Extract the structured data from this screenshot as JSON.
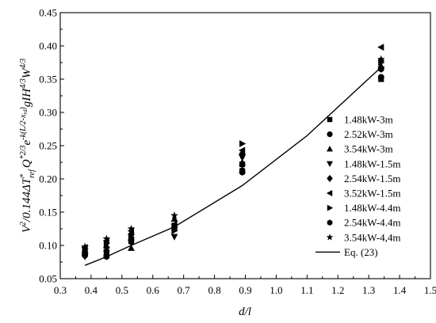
{
  "chart_data": {
    "type": "scatter",
    "xlabel": "d/l",
    "ylabel_parts": {
      "a": "V",
      "a_sup": "2",
      "b": "/0.144ΔT",
      "b_sup": "*",
      "b_sub": "ref",
      "c": "Q",
      "c_sup": "*2/3",
      "d": "e",
      "d_sup": "-k(L/2-x",
      "d_sup_sub": "rd",
      "d_sup_end": ")",
      "e": "gIH",
      "e_sup": "4/3",
      "f": "W",
      "f_sup": "4/3"
    },
    "xlim": [
      0.3,
      1.5
    ],
    "ylim": [
      0.05,
      0.45
    ],
    "xticks": [
      "0.3",
      "0.4",
      "0.5",
      "0.6",
      "0.7",
      "0.8",
      "0.9",
      "1.0",
      "1.1",
      "1.2",
      "1.3",
      "1.4",
      "1.5"
    ],
    "yticks": [
      "0.05",
      "0.10",
      "0.15",
      "0.20",
      "0.25",
      "0.30",
      "0.35",
      "0.40",
      "0.45"
    ],
    "legend_position": "right",
    "series": [
      {
        "name": "1.48kW-3m",
        "marker": "square",
        "points": [
          [
            0.38,
            0.088
          ],
          [
            0.45,
            0.09
          ],
          [
            0.53,
            0.107
          ],
          [
            0.67,
            0.13
          ],
          [
            0.89,
            0.222
          ],
          [
            1.34,
            0.35
          ]
        ]
      },
      {
        "name": "2.52kW-3m",
        "marker": "circle",
        "points": [
          [
            0.38,
            0.085
          ],
          [
            0.45,
            0.084
          ],
          [
            0.53,
            0.108
          ],
          [
            0.67,
            0.127
          ],
          [
            0.89,
            0.21
          ],
          [
            1.34,
            0.353
          ]
        ]
      },
      {
        "name": "3.54kW-3m",
        "marker": "triangle-up",
        "points": [
          [
            0.38,
            0.093
          ],
          [
            0.45,
            0.1
          ],
          [
            0.53,
            0.096
          ],
          [
            0.67,
            0.14
          ],
          [
            0.89,
            0.225
          ],
          [
            1.34,
            0.37
          ]
        ]
      },
      {
        "name": "1.48kW-1.5m",
        "marker": "triangle-down",
        "points": [
          [
            0.38,
            0.083
          ],
          [
            0.45,
            0.088
          ],
          [
            0.53,
            0.113
          ],
          [
            0.67,
            0.113
          ],
          [
            0.89,
            0.232
          ],
          [
            1.34,
            0.365
          ]
        ]
      },
      {
        "name": "2.54kW-1.5m",
        "marker": "diamond",
        "points": [
          [
            0.38,
            0.09
          ],
          [
            0.45,
            0.097
          ],
          [
            0.53,
            0.117
          ],
          [
            0.67,
            0.128
          ],
          [
            0.89,
            0.238
          ],
          [
            1.34,
            0.378
          ]
        ]
      },
      {
        "name": "3.52kW-1.5m",
        "marker": "triangle-left",
        "points": [
          [
            0.38,
            0.097
          ],
          [
            0.45,
            0.107
          ],
          [
            0.53,
            0.122
          ],
          [
            0.67,
            0.132
          ],
          [
            0.89,
            0.243
          ],
          [
            1.34,
            0.398
          ]
        ]
      },
      {
        "name": "1.48kW-4.4m",
        "marker": "triangle-right",
        "points": [
          [
            0.38,
            0.095
          ],
          [
            0.45,
            0.103
          ],
          [
            0.53,
            0.112
          ],
          [
            0.67,
            0.122
          ],
          [
            0.89,
            0.253
          ],
          [
            1.34,
            0.375
          ]
        ]
      },
      {
        "name": "2.54kW-4.4m",
        "marker": "hexagon",
        "points": [
          [
            0.38,
            0.087
          ],
          [
            0.45,
            0.083
          ],
          [
            0.53,
            0.105
          ],
          [
            0.67,
            0.125
          ],
          [
            0.89,
            0.213
          ],
          [
            1.34,
            0.365
          ]
        ]
      },
      {
        "name": "3.54kW-4,4m",
        "marker": "star",
        "points": [
          [
            0.38,
            0.098
          ],
          [
            0.45,
            0.11
          ],
          [
            0.53,
            0.125
          ],
          [
            0.67,
            0.145
          ],
          [
            0.89,
            0.235
          ],
          [
            1.34,
            0.38
          ]
        ]
      }
    ],
    "fit_line": {
      "name": "Eq. (23)",
      "points": [
        [
          0.38,
          0.07
        ],
        [
          0.45,
          0.083
        ],
        [
          0.53,
          0.1
        ],
        [
          0.67,
          0.128
        ],
        [
          0.89,
          0.19
        ],
        [
          1.1,
          0.265
        ],
        [
          1.34,
          0.368
        ]
      ]
    }
  }
}
